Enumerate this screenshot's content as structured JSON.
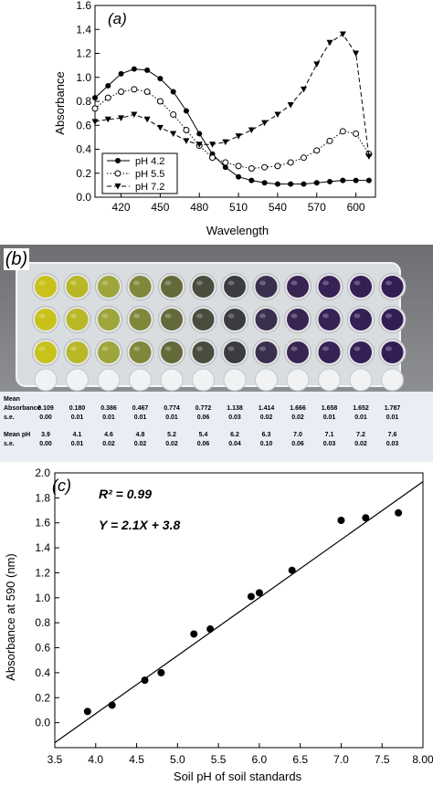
{
  "panel_a": {
    "panel_label": "(a)",
    "chart_data": {
      "type": "line",
      "xlabel": "Wavelength",
      "ylabel": "Absorbance",
      "xlim": [
        400,
        615
      ],
      "ylim": [
        0.0,
        1.6
      ],
      "x_ticks": [
        "420",
        "450",
        "480",
        "510",
        "540",
        "570",
        "600"
      ],
      "y_ticks": [
        "0.0",
        "0.2",
        "0.4",
        "0.6",
        "0.8",
        "1.0",
        "1.2",
        "1.4",
        "1.6"
      ],
      "legend_position": "bottom-left",
      "x": [
        400,
        410,
        420,
        430,
        440,
        450,
        460,
        470,
        480,
        490,
        500,
        510,
        520,
        530,
        540,
        550,
        560,
        570,
        580,
        590,
        600,
        610
      ],
      "series": [
        {
          "name": "pH 4.2",
          "marker": "filled-circle",
          "line": "solid",
          "values": [
            0.83,
            0.93,
            1.03,
            1.07,
            1.06,
            0.99,
            0.88,
            0.72,
            0.53,
            0.36,
            0.25,
            0.17,
            0.14,
            0.12,
            0.11,
            0.11,
            0.11,
            0.12,
            0.13,
            0.14,
            0.14,
            0.14
          ]
        },
        {
          "name": "pH 5.5",
          "marker": "open-circle",
          "line": "dotted",
          "values": [
            0.74,
            0.83,
            0.88,
            0.9,
            0.88,
            0.8,
            0.69,
            0.56,
            0.43,
            0.33,
            0.29,
            0.26,
            0.24,
            0.25,
            0.26,
            0.29,
            0.33,
            0.39,
            0.47,
            0.55,
            0.53,
            0.36
          ]
        },
        {
          "name": "pH 7.2",
          "marker": "filled-triangle-down",
          "line": "dashed",
          "values": [
            0.63,
            0.65,
            0.66,
            0.69,
            0.65,
            0.58,
            0.53,
            0.47,
            0.44,
            0.44,
            0.46,
            0.51,
            0.56,
            0.62,
            0.69,
            0.77,
            0.9,
            1.11,
            1.29,
            1.36,
            1.2,
            0.34
          ]
        }
      ]
    }
  },
  "panel_b": {
    "panel_label": "(b)",
    "photo_description_colors": [
      "#c9c21a",
      "#b8b827",
      "#9ea53a",
      "#80873a",
      "#64693a",
      "#4a4d3e",
      "#3b3b42",
      "#3a2f4e",
      "#3a2452",
      "#382154",
      "#361f55",
      "#341d55"
    ],
    "table": {
      "columns": 12,
      "rows": [
        {
          "label": "Mean",
          "values": []
        },
        {
          "label": "Absorbance",
          "values": [
            "0.109",
            "0.180",
            "0.386",
            "0.467",
            "0.774",
            "0.772",
            "1.138",
            "1.414",
            "1.666",
            "1.658",
            "1.652",
            "1.787"
          ]
        },
        {
          "label": "s.e.",
          "values": [
            "0.00",
            "0.01",
            "0.01",
            "0.01",
            "0.01",
            "0.06",
            "0.03",
            "0.02",
            "0.02",
            "0.01",
            "0.01",
            "0.01"
          ]
        },
        {
          "label": "Mean pH",
          "values": [
            "3.9",
            "4.1",
            "4.6",
            "4.8",
            "5.2",
            "5.4",
            "6.2",
            "6.3",
            "7.0",
            "7.1",
            "7.2",
            "7.6"
          ]
        },
        {
          "label": "s.e.",
          "values": [
            "0.00",
            "0.01",
            "0.02",
            "0.02",
            "0.02",
            "0.06",
            "0.04",
            "0.10",
            "0.06",
            "0.03",
            "0.02",
            "0.03"
          ]
        }
      ]
    }
  },
  "panel_c": {
    "panel_label": "(c)",
    "chart_data": {
      "type": "scatter",
      "xlabel": "Soil pH of soil standards",
      "ylabel": "Absorbance at 590 (nm)",
      "xlim": [
        3.5,
        8.0
      ],
      "ylim": [
        -0.2,
        2.0
      ],
      "x_ticks": [
        "3.5",
        "4.0",
        "4.5",
        "5.0",
        "5.5",
        "6.0",
        "6.5",
        "7.0",
        "7.5",
        "8.00"
      ],
      "y_ticks": [
        "0.0",
        "0.2",
        "0.4",
        "0.6",
        "0.8",
        "1.0",
        "1.2",
        "1.4",
        "1.6",
        "1.8",
        "2.0"
      ],
      "annotations": [
        "R² = 0.99",
        "Y = 2.1X + 3.8"
      ],
      "fit_line": {
        "x": [
          3.5,
          8.0
        ],
        "y": [
          -0.16,
          1.93
        ]
      },
      "points": {
        "x": [
          3.9,
          4.2,
          4.6,
          4.8,
          5.2,
          5.4,
          5.9,
          6.0,
          6.4,
          7.0,
          7.3,
          7.7
        ],
        "y": [
          0.09,
          0.14,
          0.34,
          0.4,
          0.71,
          0.75,
          1.01,
          1.04,
          1.22,
          1.62,
          1.64,
          1.68
        ]
      }
    }
  }
}
